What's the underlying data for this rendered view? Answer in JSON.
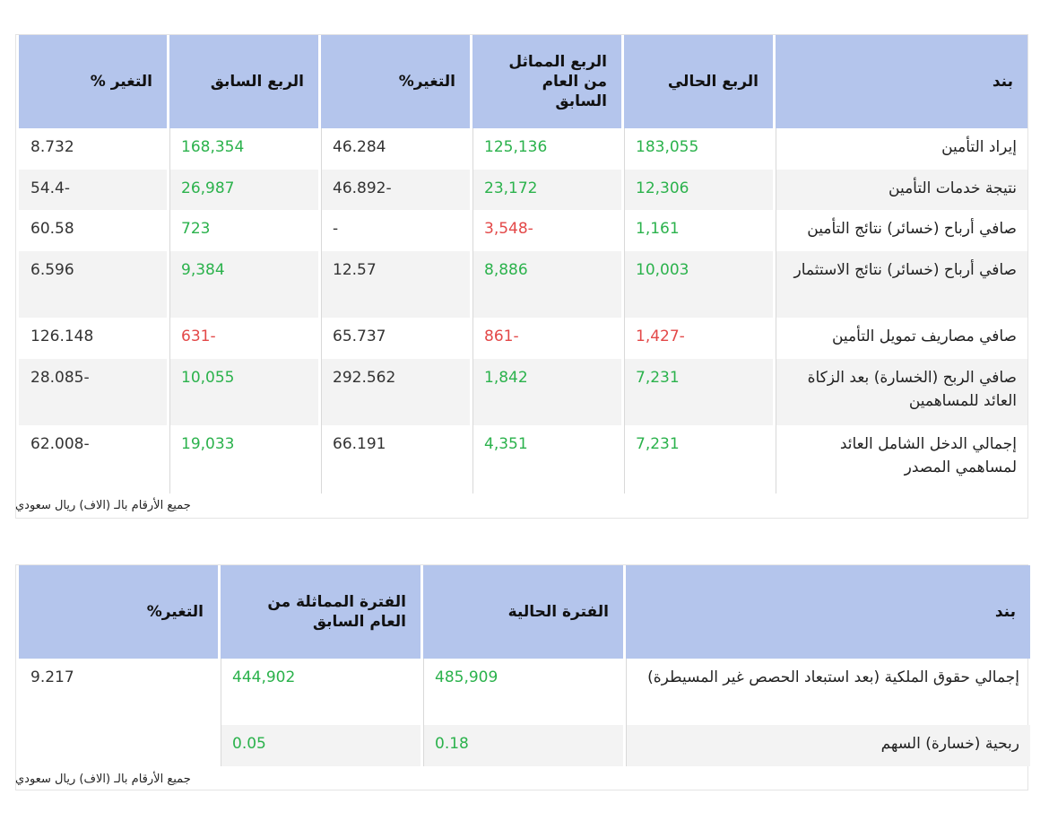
{
  "table1": {
    "headers": [
      "بند",
      "الربع الحالي",
      "الربع المماثل من العام السابق",
      "التغير%",
      "الربع السابق",
      "التغير %"
    ],
    "rows": [
      {
        "item": "إيراد التأمين",
        "current": "183,055",
        "same_prev_year": "125,136",
        "change_yoy": "46.284",
        "prev_quarter": "168,354",
        "change_qoq": "8.732"
      },
      {
        "item": "نتيجة خدمات التأمين",
        "current": "12,306",
        "same_prev_year": "23,172",
        "change_yoy": "46.892-",
        "prev_quarter": "26,987",
        "change_qoq": "54.4-"
      },
      {
        "item": "صافي أرباح (خسائر) نتائج التأمين",
        "current": "1,161",
        "same_prev_year": "3,548-",
        "change_yoy": "-",
        "prev_quarter": "723",
        "change_qoq": "60.58"
      },
      {
        "item": "صافي أرباح (خسائر) نتائج الاستثمار",
        "current": "10,003",
        "same_prev_year": "8,886",
        "change_yoy": "12.57",
        "prev_quarter": "9,384",
        "change_qoq": "6.596"
      },
      {
        "item": "صافي مصاريف تمويل التأمين",
        "current": "1,427-",
        "same_prev_year": "861-",
        "change_yoy": "65.737",
        "prev_quarter": "631-",
        "change_qoq": "126.148"
      },
      {
        "item": "صافي الربح (الخسارة) بعد الزكاة العائد للمساهمين",
        "current": "7,231",
        "same_prev_year": "1,842",
        "change_yoy": "292.562",
        "prev_quarter": "10,055",
        "change_qoq": "28.085-"
      },
      {
        "item": "إجمالي الدخل الشامل العائد لمساهمي المصدر",
        "current": "7,231",
        "same_prev_year": "4,351",
        "change_yoy": "66.191",
        "prev_quarter": "19,033",
        "change_qoq": "62.008-"
      }
    ],
    "note": "جميع الأرقام بالـ (الاف) ريال سعودي"
  },
  "table2": {
    "headers": [
      "بند",
      "الفترة الحالية",
      "الفترة المماثلة من العام السابق",
      "التغير%"
    ],
    "rows": [
      {
        "item": "إجمالي حقوق الملكية (بعد استبعاد الحصص غير المسيطرة)",
        "current": "485,909",
        "same_prev_year": "444,902",
        "change": "9.217"
      },
      {
        "item": "ربحية (خسارة) السهم",
        "current": "0.18",
        "same_prev_year": "0.05",
        "change": ""
      }
    ],
    "note": "جميع الأرقام بالـ (الاف) ريال سعودي"
  },
  "colors": {
    "header_bg": "#b4c5ec",
    "positive": "#2bb24c",
    "negative": "#e34848",
    "alt_row": "#f3f3f3"
  }
}
